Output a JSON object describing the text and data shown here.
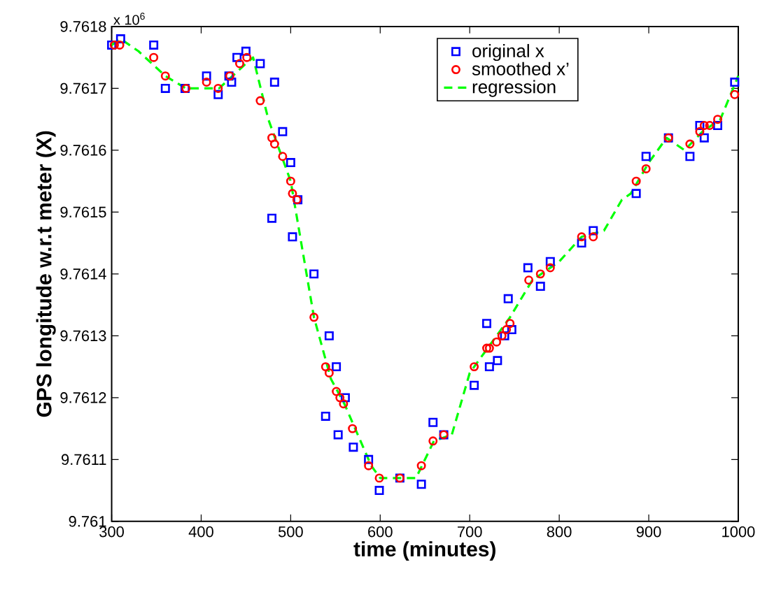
{
  "chart_data": {
    "type": "scatter",
    "xlabel": "time (minutes)",
    "ylabel": "GPS longitude w.r.t meter (X)",
    "annotations": [
      "x 10$^{6}$"
    ],
    "xlim": [
      300,
      1000
    ],
    "xticks": [
      300,
      400,
      500,
      600,
      700,
      800,
      900,
      1000
    ],
    "ylim": [
      9.761,
      9.7618
    ],
    "yticks": [
      9.761,
      9.7611,
      9.7612,
      9.7613,
      9.7614,
      9.7615,
      9.7616,
      9.7617,
      9.7618
    ],
    "legend": "top right",
    "grid": false,
    "series": [
      {
        "name": "original x",
        "marker": "square",
        "color": "#0000ff",
        "x": [
          300,
          310,
          347,
          360,
          382,
          406,
          419,
          431,
          434,
          440,
          450,
          466,
          479,
          482,
          491,
          500,
          502,
          508,
          526,
          539,
          543,
          551,
          553,
          561,
          570,
          587,
          599,
          622,
          646,
          659,
          671,
          705,
          719,
          722,
          731,
          739,
          743,
          747,
          765,
          779,
          790,
          825,
          838,
          886,
          897,
          922,
          946,
          957,
          962,
          977,
          996
        ],
        "values": [
          9.76177,
          9.76178,
          9.76177,
          9.7617,
          9.7617,
          9.76172,
          9.76169,
          9.76172,
          9.76171,
          9.76175,
          9.76176,
          9.76174,
          9.76149,
          9.76171,
          9.76163,
          9.76158,
          9.76146,
          9.76152,
          9.7614,
          9.76117,
          9.7613,
          9.76125,
          9.76114,
          9.7612,
          9.76112,
          9.7611,
          9.76105,
          9.76107,
          9.76106,
          9.76116,
          9.76114,
          9.76122,
          9.76132,
          9.76125,
          9.76126,
          9.7613,
          9.76136,
          9.76131,
          9.76141,
          9.76138,
          9.76142,
          9.76145,
          9.76147,
          9.76153,
          9.76159,
          9.76162,
          9.76159,
          9.76164,
          9.76162,
          9.76164,
          9.76171
        ]
      },
      {
        "name": "smoothed x’",
        "marker": "circle",
        "color": "#ff0000",
        "x": [
          303,
          309,
          347,
          360,
          383,
          406,
          419,
          432,
          443,
          451,
          466,
          479,
          482,
          491,
          500,
          502,
          507,
          526,
          539,
          543,
          551,
          555,
          559,
          569,
          587,
          599,
          622,
          646,
          659,
          671,
          705,
          719,
          722,
          730,
          736,
          741,
          745,
          766,
          779,
          790,
          825,
          838,
          886,
          897,
          922,
          946,
          957,
          962,
          968,
          977,
          996
        ],
        "values": [
          9.76177,
          9.76177,
          9.76175,
          9.76172,
          9.7617,
          9.76171,
          9.7617,
          9.76172,
          9.76174,
          9.76175,
          9.76168,
          9.76162,
          9.76161,
          9.76159,
          9.76155,
          9.76153,
          9.76152,
          9.76133,
          9.76125,
          9.76124,
          9.76121,
          9.7612,
          9.76119,
          9.76115,
          9.76109,
          9.76107,
          9.76107,
          9.76109,
          9.76113,
          9.76114,
          9.76125,
          9.76128,
          9.76128,
          9.76129,
          9.7613,
          9.76131,
          9.76132,
          9.76139,
          9.7614,
          9.76141,
          9.76146,
          9.76146,
          9.76155,
          9.76157,
          9.76162,
          9.76161,
          9.76163,
          9.76164,
          9.76164,
          9.76165,
          9.76169
        ]
      },
      {
        "name": "regression",
        "type": "line",
        "marker": "none",
        "line_style": "dashed",
        "color": "#00ff00",
        "x": [
          300,
          310,
          330,
          360,
          383,
          420,
          450,
          458,
          475,
          500,
          526,
          545,
          560,
          590,
          600,
          640,
          660,
          680,
          700,
          720,
          745,
          770,
          800,
          825,
          850,
          870,
          880,
          900,
          920,
          940,
          960,
          980,
          1000
        ],
        "values": [
          9.76177,
          9.76178,
          9.76176,
          9.76172,
          9.7617,
          9.7617,
          9.76174,
          9.76175,
          9.76165,
          9.76155,
          9.76133,
          9.76123,
          9.76119,
          9.76109,
          9.76107,
          9.76107,
          9.76113,
          9.76114,
          9.76124,
          9.76128,
          9.76133,
          9.76139,
          9.76142,
          9.76146,
          9.76147,
          9.76152,
          9.76153,
          9.76158,
          9.76162,
          9.7616,
          9.76163,
          9.76165,
          9.76172
        ]
      }
    ]
  }
}
